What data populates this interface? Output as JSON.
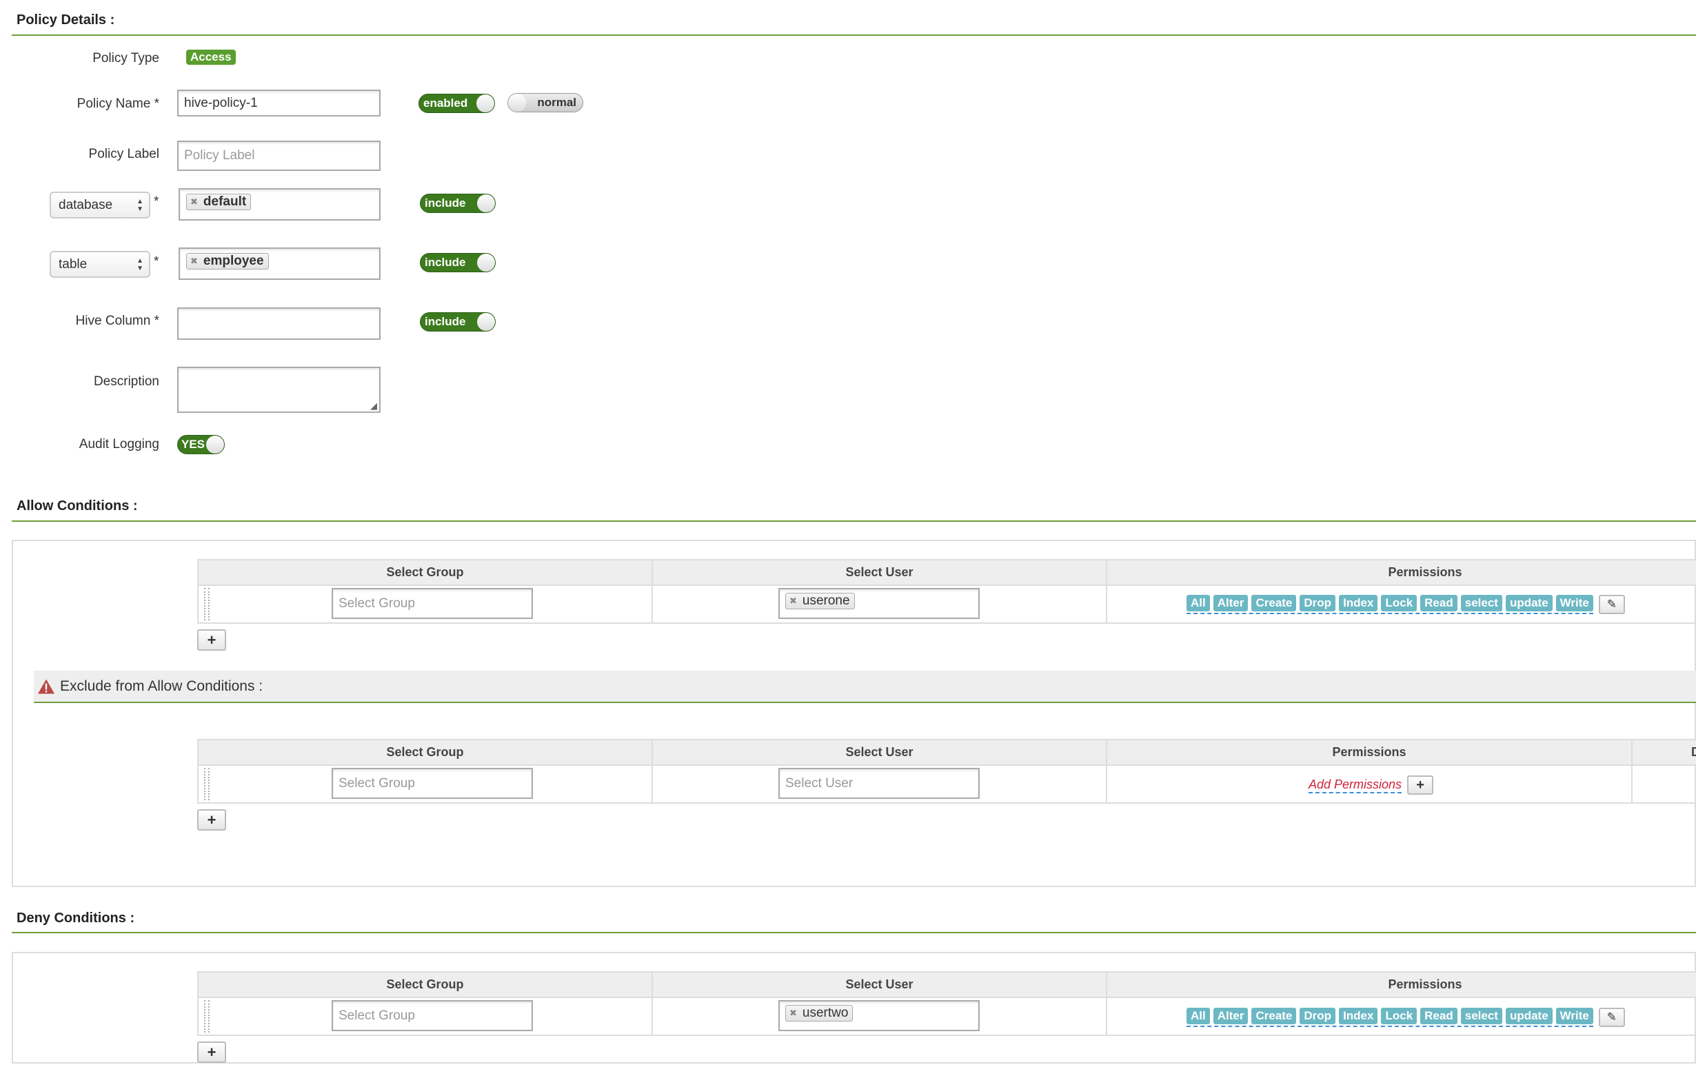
{
  "policy_details": {
    "title": "Policy Details :",
    "policy_type_label": "Policy Type",
    "policy_type_value": "Access",
    "policy_name_label": "Policy Name *",
    "policy_name_value": "hive-policy-1",
    "enabled_toggle": "enabled",
    "normal_toggle": "normal",
    "policy_label_label": "Policy Label",
    "policy_label_placeholder": "Policy Label",
    "resources": [
      {
        "type": "database",
        "required": "*",
        "values": [
          "default"
        ],
        "toggle": "include"
      },
      {
        "type": "table",
        "required": "*",
        "values": [
          "employee"
        ],
        "toggle": "include"
      }
    ],
    "hive_column_label": "Hive Column *",
    "hive_column_toggle": "include",
    "description_label": "Description",
    "audit_logging_label": "Audit Logging",
    "audit_logging_value": "YES"
  },
  "allow": {
    "title": "Allow Conditions :",
    "headers": [
      "Select Group",
      "Select User",
      "Permissions"
    ],
    "group_placeholder": "Select Group",
    "user": "userone",
    "permissions": [
      "All",
      "Alter",
      "Create",
      "Drop",
      "Index",
      "Lock",
      "Read",
      "select",
      "update",
      "Write"
    ],
    "add_label": "+"
  },
  "exclude": {
    "title": "Exclude from Allow Conditions :",
    "headers": [
      "Select Group",
      "Select User",
      "Permissions",
      "D"
    ],
    "group_placeholder": "Select Group",
    "user_placeholder": "Select User",
    "add_permissions": "Add Permissions",
    "add_label": "+"
  },
  "deny": {
    "title": "Deny Conditions :",
    "headers": [
      "Select Group",
      "Select User",
      "Permissions"
    ],
    "group_placeholder": "Select Group",
    "user": "usertwo",
    "permissions": [
      "All",
      "Alter",
      "Create",
      "Drop",
      "Index",
      "Lock",
      "Read",
      "select",
      "update",
      "Write"
    ],
    "add_label": "+"
  },
  "colors": {
    "accent_green": "#5a9e2f",
    "toggle_green": "#3c7a1e",
    "perm_tag": "#6bb8c4",
    "warning": "#b94a48",
    "add_permissions": "#d0213b"
  }
}
